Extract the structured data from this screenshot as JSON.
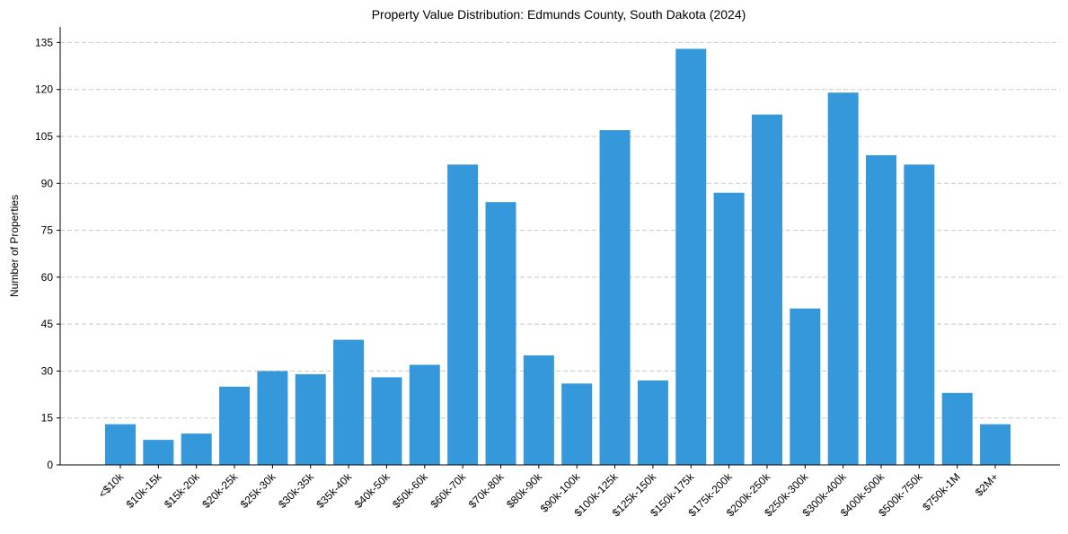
{
  "chart_data": {
    "type": "bar",
    "title": "Property Value Distribution: Edmunds County, South Dakota (2024)",
    "xlabel": "",
    "ylabel": "Number of Properties",
    "categories": [
      "<$10k",
      "$10k-15k",
      "$15k-20k",
      "$20k-25k",
      "$25k-30k",
      "$30k-35k",
      "$35k-40k",
      "$40k-50k",
      "$50k-60k",
      "$60k-70k",
      "$70k-80k",
      "$80k-90k",
      "$90k-100k",
      "$100k-125k",
      "$125k-150k",
      "$150k-175k",
      "$175k-200k",
      "$200k-250k",
      "$250k-300k",
      "$300k-400k",
      "$400k-500k",
      "$500k-750k",
      "$750k-1M",
      "$2M+"
    ],
    "values": [
      13,
      8,
      10,
      25,
      30,
      29,
      40,
      28,
      32,
      96,
      84,
      35,
      26,
      107,
      27,
      133,
      87,
      112,
      50,
      119,
      99,
      96,
      23,
      13
    ],
    "ylim": [
      0,
      140
    ],
    "yticks": [
      0,
      15,
      30,
      45,
      60,
      75,
      90,
      105,
      120,
      135
    ],
    "grid": "y-dashed",
    "bar_color": "#3498db"
  }
}
